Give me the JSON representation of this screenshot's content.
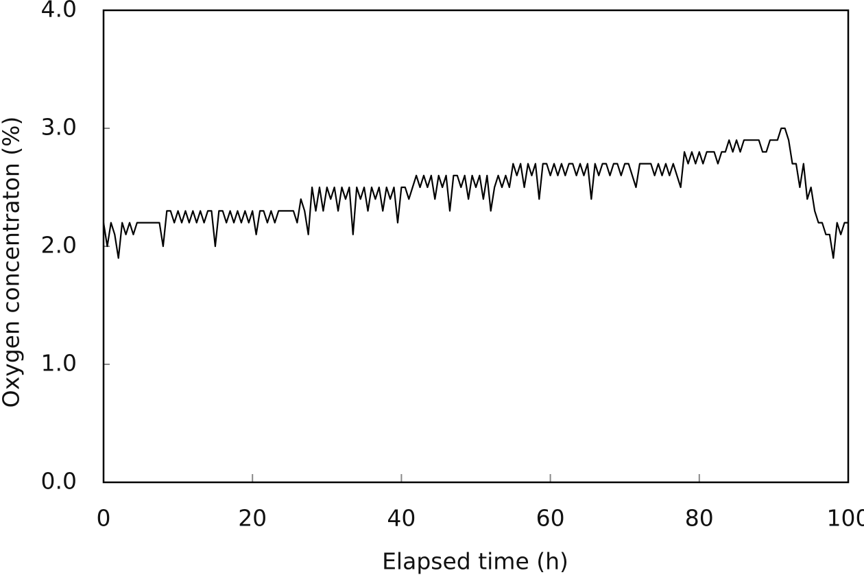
{
  "chart_data": {
    "type": "line",
    "x_label": "Elapsed time (h)",
    "y_label": "Oxygen concentraton (%)",
    "xlim": [
      0,
      100
    ],
    "xticks": [
      0,
      20,
      40,
      60,
      80,
      100
    ],
    "ylim": [
      0,
      4
    ],
    "yticks": [
      {
        "value": 0,
        "label": "0.0"
      },
      {
        "value": 1,
        "label": "1.0"
      },
      {
        "value": 2,
        "label": "2.0"
      },
      {
        "value": 3,
        "label": "3.0"
      },
      {
        "value": 4,
        "label": "4.0"
      }
    ],
    "color": "#000000",
    "x": [
      0,
      0.5,
      1,
      1.5,
      2,
      2.5,
      3,
      3.5,
      4,
      4.5,
      5,
      5.5,
      6,
      6.5,
      7,
      7.5,
      8,
      8.5,
      9,
      9.5,
      10,
      10.5,
      11,
      11.5,
      12,
      12.5,
      13,
      13.5,
      14,
      14.5,
      15,
      15.5,
      16,
      16.5,
      17,
      17.5,
      18,
      18.5,
      19,
      19.5,
      20,
      20.5,
      21,
      21.5,
      22,
      22.5,
      23,
      23.5,
      24,
      24.5,
      25,
      25.5,
      26,
      26.5,
      27,
      27.5,
      28,
      28.5,
      29,
      29.5,
      30,
      30.5,
      31,
      31.5,
      32,
      32.5,
      33,
      33.5,
      34,
      34.5,
      35,
      35.5,
      36,
      36.5,
      37,
      37.5,
      38,
      38.5,
      39,
      39.5,
      40,
      40.5,
      41,
      41.5,
      42,
      42.5,
      43,
      43.5,
      44,
      44.5,
      45,
      45.5,
      46,
      46.5,
      47,
      47.5,
      48,
      48.5,
      49,
      49.5,
      50,
      50.5,
      51,
      51.5,
      52,
      52.5,
      53,
      53.5,
      54,
      54.5,
      55,
      55.5,
      56,
      56.5,
      57,
      57.5,
      58,
      58.5,
      59,
      59.5,
      60,
      60.5,
      61,
      61.5,
      62,
      62.5,
      63,
      63.5,
      64,
      64.5,
      65,
      65.5,
      66,
      66.5,
      67,
      67.5,
      68,
      68.5,
      69,
      69.5,
      70,
      70.5,
      71,
      71.5,
      72,
      72.5,
      73,
      73.5,
      74,
      74.5,
      75,
      75.5,
      76,
      76.5,
      77,
      77.5,
      78,
      78.5,
      79,
      79.5,
      80,
      80.5,
      81,
      81.5,
      82,
      82.5,
      83,
      83.5,
      84,
      84.5,
      85,
      85.5,
      86,
      86.5,
      87,
      87.5,
      88,
      88.5,
      89,
      89.5,
      90,
      90.5,
      91,
      91.5,
      92,
      92.5,
      93,
      93.5,
      94,
      94.5,
      95,
      95.5,
      96,
      96.5,
      97,
      97.5,
      98,
      98.5,
      99,
      99.5,
      100
    ],
    "values": [
      2.2,
      2.0,
      2.2,
      2.1,
      1.9,
      2.2,
      2.1,
      2.2,
      2.1,
      2.2,
      2.2,
      2.2,
      2.2,
      2.2,
      2.2,
      2.2,
      2.0,
      2.3,
      2.3,
      2.2,
      2.3,
      2.2,
      2.3,
      2.2,
      2.3,
      2.2,
      2.3,
      2.2,
      2.3,
      2.3,
      2.0,
      2.3,
      2.3,
      2.2,
      2.3,
      2.2,
      2.3,
      2.2,
      2.3,
      2.2,
      2.3,
      2.1,
      2.3,
      2.3,
      2.2,
      2.3,
      2.2,
      2.3,
      2.3,
      2.3,
      2.3,
      2.3,
      2.2,
      2.4,
      2.3,
      2.1,
      2.5,
      2.3,
      2.5,
      2.3,
      2.5,
      2.4,
      2.5,
      2.3,
      2.5,
      2.4,
      2.5,
      2.1,
      2.5,
      2.4,
      2.5,
      2.3,
      2.5,
      2.4,
      2.5,
      2.3,
      2.5,
      2.4,
      2.5,
      2.2,
      2.5,
      2.5,
      2.4,
      2.5,
      2.6,
      2.5,
      2.6,
      2.5,
      2.6,
      2.4,
      2.6,
      2.5,
      2.6,
      2.3,
      2.6,
      2.6,
      2.5,
      2.6,
      2.4,
      2.6,
      2.5,
      2.6,
      2.4,
      2.6,
      2.3,
      2.5,
      2.6,
      2.5,
      2.6,
      2.5,
      2.7,
      2.6,
      2.7,
      2.5,
      2.7,
      2.6,
      2.7,
      2.4,
      2.7,
      2.7,
      2.6,
      2.7,
      2.6,
      2.7,
      2.6,
      2.7,
      2.7,
      2.6,
      2.7,
      2.6,
      2.7,
      2.4,
      2.7,
      2.6,
      2.7,
      2.7,
      2.6,
      2.7,
      2.7,
      2.6,
      2.7,
      2.7,
      2.6,
      2.5,
      2.7,
      2.7,
      2.7,
      2.7,
      2.6,
      2.7,
      2.6,
      2.7,
      2.6,
      2.7,
      2.6,
      2.5,
      2.8,
      2.7,
      2.8,
      2.7,
      2.8,
      2.7,
      2.8,
      2.8,
      2.8,
      2.7,
      2.8,
      2.8,
      2.9,
      2.8,
      2.9,
      2.8,
      2.9,
      2.9,
      2.9,
      2.9,
      2.9,
      2.8,
      2.8,
      2.9,
      2.9,
      2.9,
      3.0,
      3.0,
      2.9,
      2.7,
      2.7,
      2.5,
      2.7,
      2.4,
      2.5,
      2.3,
      2.2,
      2.2,
      2.1,
      2.1,
      1.9,
      2.2,
      2.1,
      2.2,
      2.2
    ]
  }
}
